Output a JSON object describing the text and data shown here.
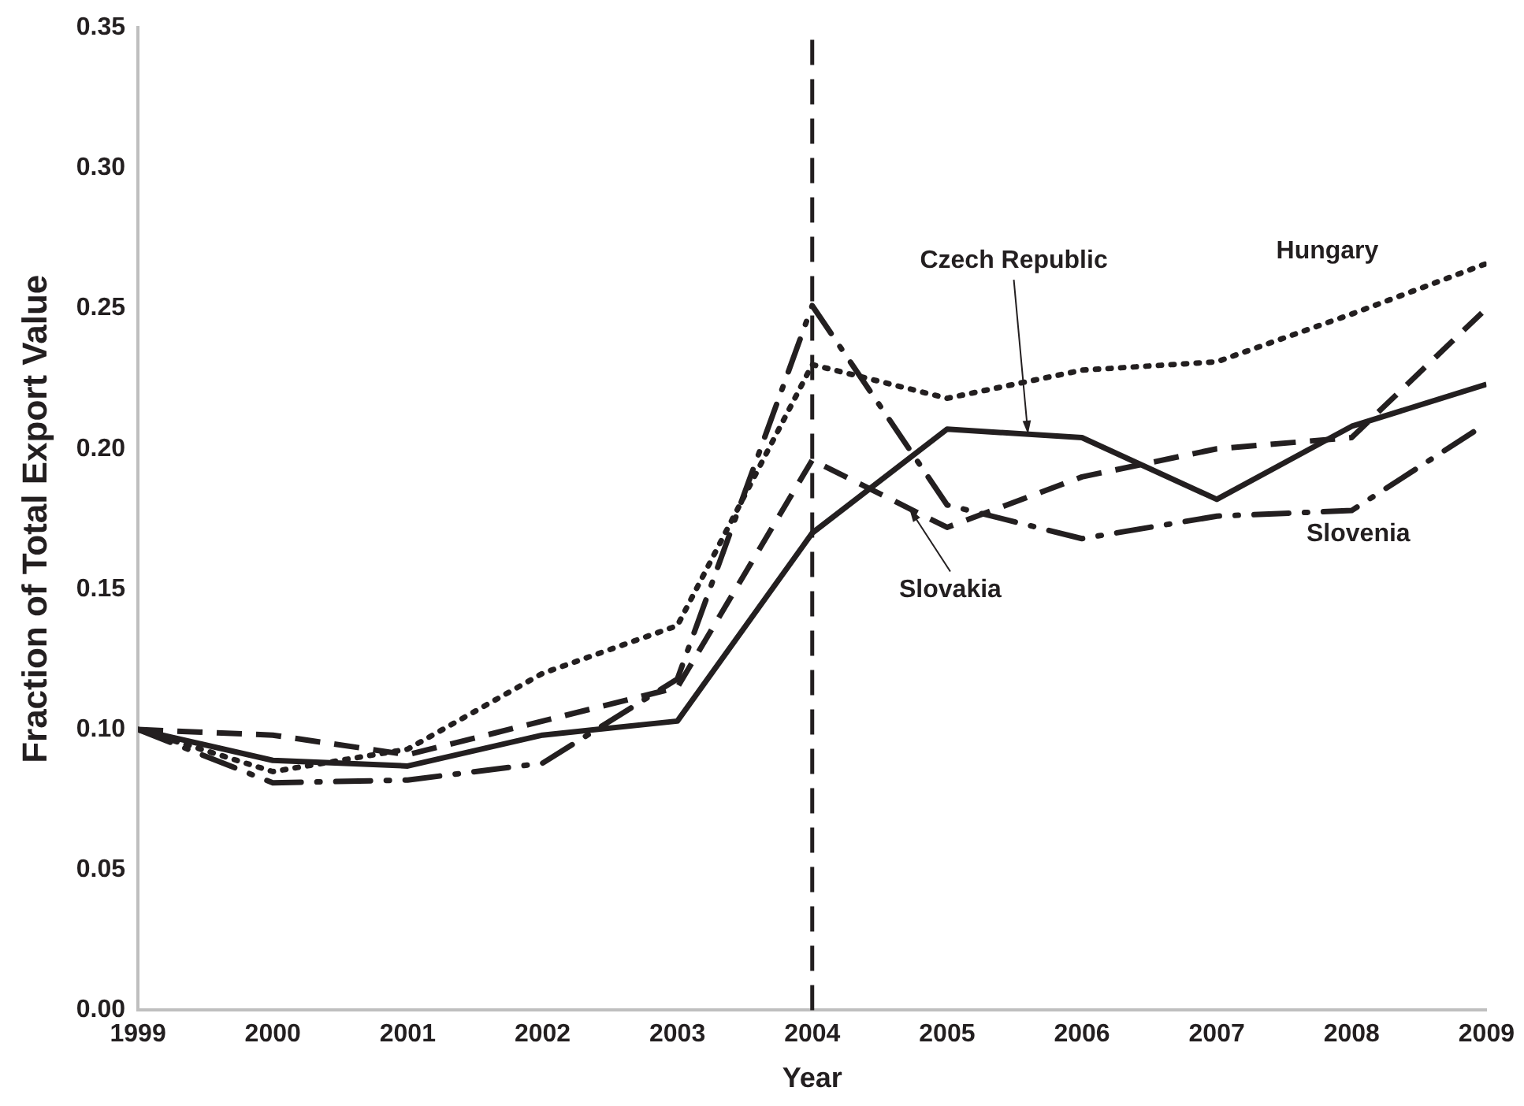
{
  "chart_data": {
    "type": "line",
    "xlabel": "Year",
    "ylabel": "Fraction of Total Export Value",
    "x": [
      1999,
      2000,
      2001,
      2002,
      2003,
      2004,
      2005,
      2006,
      2007,
      2008,
      2009
    ],
    "series": [
      {
        "name": "Czech Republic",
        "color": "#231f20",
        "line_style": "solid",
        "values": [
          0.1,
          0.089,
          0.087,
          0.098,
          0.103,
          0.17,
          0.207,
          0.204,
          0.182,
          0.208,
          0.223
        ]
      },
      {
        "name": "Hungary",
        "color": "#231f20",
        "line_style": "dotted",
        "values": [
          0.1,
          0.085,
          0.093,
          0.12,
          0.137,
          0.23,
          0.218,
          0.228,
          0.231,
          0.248,
          0.266
        ]
      },
      {
        "name": "Slovakia",
        "color": "#231f20",
        "line_style": "dashed",
        "values": [
          0.1,
          0.098,
          0.091,
          0.103,
          0.115,
          0.196,
          0.172,
          0.19,
          0.2,
          0.204,
          0.25
        ]
      },
      {
        "name": "Slovenia",
        "color": "#231f20",
        "line_style": "dashdot",
        "values": [
          0.1,
          0.081,
          0.082,
          0.088,
          0.118,
          0.251,
          0.18,
          0.168,
          0.176,
          0.178,
          0.209
        ]
      }
    ],
    "ref_lines": [
      {
        "axis": "x",
        "value": 2004,
        "color": "#231f20",
        "line_style": "dashed"
      }
    ],
    "xlim": [
      1999,
      2009
    ],
    "xticks": [
      1999,
      2000,
      2001,
      2002,
      2003,
      2004,
      2005,
      2006,
      2007,
      2008,
      2009
    ],
    "ylim": [
      0,
      0.35
    ],
    "yticks": [
      {
        "value": 0,
        "label": "0.00"
      },
      {
        "value": 0.05,
        "label": "0.05"
      },
      {
        "value": 0.1,
        "label": "0.10"
      },
      {
        "value": 0.15,
        "label": "0.15"
      },
      {
        "value": 0.2,
        "label": "0.20"
      },
      {
        "value": 0.25,
        "label": "0.25"
      },
      {
        "value": 0.3,
        "label": "0.30"
      },
      {
        "value": 0.35,
        "label": "0.35"
      }
    ],
    "grid": false,
    "legend": false,
    "marker": "none"
  }
}
